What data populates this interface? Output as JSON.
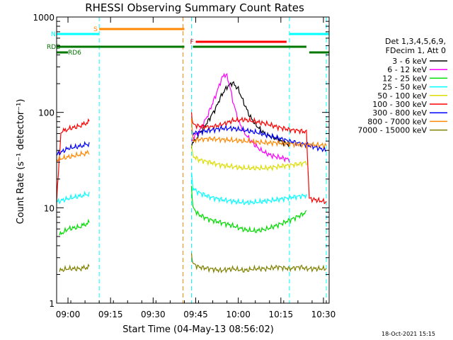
{
  "chart_data": {
    "type": "line",
    "title": "RHESSI Observing Summary Count Rates",
    "xlabel": "Start Time (04-May-13 08:56:02)",
    "ylabel": "Count Rate (s⁻¹ detector⁻¹)",
    "yscale": "log",
    "ylim": [
      1,
      1000
    ],
    "xlim_minutes": [
      0,
      96
    ],
    "x_ticks": [
      {
        "label": "09:00",
        "t": 4.0
      },
      {
        "label": "09:15",
        "t": 19.0
      },
      {
        "label": "09:30",
        "t": 34.0
      },
      {
        "label": "09:45",
        "t": 49.0
      },
      {
        "label": "10:00",
        "t": 64.0
      },
      {
        "label": "10:15",
        "t": 79.0
      },
      {
        "label": "10:30",
        "t": 94.0
      }
    ],
    "y_ticks": [
      {
        "label": "1",
        "v": 1
      },
      {
        "label": "10",
        "v": 10
      },
      {
        "label": "100",
        "v": 100
      },
      {
        "label": "1000",
        "v": 1000
      }
    ],
    "legend": {
      "header": [
        "Det 1,3,4,5,6,9,",
        "FDecim 1, Att 0"
      ],
      "position": "right"
    },
    "series": [
      {
        "name": "3 - 6 keV",
        "color": "#000000",
        "t": [
          47.5,
          50,
          53,
          56,
          58,
          60,
          62,
          64,
          66,
          68,
          70,
          72,
          74,
          76,
          78,
          80,
          82
        ],
        "values": [
          45,
          58,
          78,
          110,
          150,
          185,
          205,
          175,
          125,
          92,
          75,
          65,
          58,
          55,
          52,
          48,
          46
        ]
      },
      {
        "name": "6 - 12 keV",
        "color": "#ff00ff",
        "t": [
          47.5,
          50,
          53,
          56,
          58,
          59,
          60,
          61,
          62,
          64,
          66,
          68,
          70,
          72,
          74,
          76,
          78,
          80,
          82
        ],
        "values": [
          52,
          62,
          90,
          150,
          220,
          250,
          240,
          190,
          135,
          82,
          62,
          52,
          45,
          40,
          37,
          35,
          34,
          33,
          32
        ]
      },
      {
        "name": "12 - 25 keV",
        "color": "#00dd00",
        "t": [
          1,
          4,
          8,
          11.5,
          47.5,
          48,
          50,
          54,
          58,
          62,
          66,
          70,
          74,
          78,
          82,
          86,
          88
        ],
        "values": [
          5.2,
          6.0,
          6.3,
          7.0,
          16,
          10,
          8.5,
          7.5,
          7.0,
          6.5,
          5.9,
          5.7,
          6.0,
          6.6,
          7.4,
          8.4,
          9.0
        ]
      },
      {
        "name": "25 - 50 keV",
        "color": "#00ffff",
        "t": [
          0,
          4,
          8,
          11.5,
          47.5,
          48,
          50,
          54,
          58,
          62,
          66,
          70,
          74,
          78,
          82,
          86,
          88
        ],
        "values": [
          11.5,
          12.5,
          13.2,
          14.0,
          25,
          16,
          14.5,
          13.0,
          12.2,
          11.7,
          11.3,
          11.4,
          11.8,
          12.2,
          12.8,
          13.3,
          13.5
        ]
      },
      {
        "name": "50 - 100 keV",
        "color": "#dddd00",
        "t": [
          47.5,
          48,
          50,
          54,
          58,
          62,
          66,
          70,
          74,
          78,
          82,
          86,
          88
        ],
        "values": [
          45,
          35,
          32,
          30,
          28,
          27,
          26,
          26,
          26,
          27,
          28,
          29,
          30
        ]
      },
      {
        "name": "100 - 300 keV",
        "color": "#ff0000",
        "t": [
          0,
          1.5,
          4,
          8,
          11.5,
          47.5,
          48,
          50,
          54,
          58,
          62,
          66,
          70,
          74,
          78,
          82,
          86,
          88,
          89,
          95
        ],
        "values": [
          11.5,
          62,
          67,
          72,
          80,
          95,
          75,
          72,
          70,
          74,
          82,
          84,
          80,
          76,
          70,
          66,
          64,
          62,
          12.5,
          11.5
        ]
      },
      {
        "name": "300 - 800 keV",
        "color": "#0000ff",
        "t": [
          0,
          4,
          8,
          11.5,
          47.5,
          48,
          50,
          54,
          58,
          62,
          66,
          70,
          74,
          78,
          82,
          86,
          88,
          89,
          95
        ],
        "values": [
          36,
          42,
          44,
          47,
          70,
          60,
          62,
          65,
          68,
          68,
          65,
          62,
          58,
          54,
          50,
          47,
          46,
          45,
          40
        ]
      },
      {
        "name": "800 - 7000 keV",
        "color": "#ff8800",
        "t": [
          0,
          4,
          8,
          11.5,
          47.5,
          48,
          50,
          54,
          58,
          62,
          66,
          70,
          74,
          78,
          82,
          86,
          88,
          89,
          95
        ],
        "values": [
          32,
          34,
          36,
          38,
          85,
          50,
          52,
          53,
          52,
          51,
          50,
          49,
          48,
          48,
          47,
          46,
          46,
          46,
          45
        ]
      },
      {
        "name": "7000 - 15000 keV",
        "color": "#808000",
        "t": [
          1,
          4,
          8,
          11.5,
          47.5,
          48,
          50,
          54,
          58,
          62,
          66,
          70,
          74,
          78,
          82,
          86,
          88,
          95
        ],
        "values": [
          2.2,
          2.3,
          2.3,
          2.4,
          3.2,
          2.6,
          2.4,
          2.3,
          2.2,
          2.3,
          2.2,
          2.3,
          2.3,
          2.4,
          2.3,
          2.4,
          2.3,
          2.3
        ]
      }
    ],
    "flag_bars": [
      {
        "label": "S",
        "color": "#ff8800",
        "t_start": 15,
        "t_end": 45
      },
      {
        "label": "N",
        "color": "#00ffff",
        "t_start": -1,
        "t_end": 15
      },
      {
        "label": "",
        "color": "#00ffff",
        "t_start": 82,
        "t_end": 96
      },
      {
        "label": "F",
        "color": "#ff0000",
        "t_start": 49,
        "t_end": 81
      },
      {
        "label": "RDB",
        "color": "#007700",
        "t_start": -1,
        "t_end": 45
      },
      {
        "label": "",
        "color": "#007700",
        "t_start": 48,
        "t_end": 88
      },
      {
        "label": "RD6",
        "color": "#007700",
        "t_start": -1,
        "t_end": 4
      },
      {
        "label": "",
        "color": "#007700",
        "t_start": 89,
        "t_end": 96
      }
    ],
    "vertical_markers": [
      {
        "t": 15,
        "color": "#00ffff"
      },
      {
        "t": 44.5,
        "color": "#ff8800"
      },
      {
        "t": 47.5,
        "color": "#00ffff"
      },
      {
        "t": 82,
        "color": "#00ffff"
      },
      {
        "t": 95,
        "color": "#00ffff"
      }
    ]
  },
  "footer": {
    "timestamp": "18-Oct-2021 15:15"
  }
}
